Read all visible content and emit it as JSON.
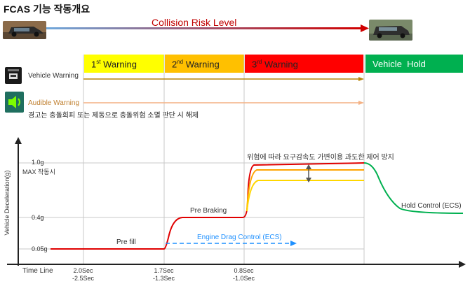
{
  "title": "FCAS 기능 작동개요",
  "risk_label": "Collision Risk Level",
  "phases": [
    {
      "label": "1st Warning",
      "sup": "st",
      "base": "1",
      "rest": " Warning",
      "color": "#ffff00"
    },
    {
      "label": "2nd Warning",
      "sup": "nd",
      "base": "2",
      "rest": " Warning",
      "color": "#ffc000"
    },
    {
      "label": "3rd Warning",
      "sup": "rd",
      "base": "3",
      "rest": " Warning",
      "color": "#ff0000"
    },
    {
      "label": "Vehicle  Hold",
      "color": "#00b050"
    }
  ],
  "vehicle_warning": "Vehicle Warning",
  "audible_warning": "Audible Warning",
  "release_note": "경고는 충돌회피 또는 제동으로 충돌위험 소멸 판단 시 해제",
  "variable_note": "위험에 따라 요구감속도 가변이용 과도한 제어 방지",
  "max_note": "MAX 작동시",
  "y_axis_label": "Vehicle Deceleration(g)",
  "y_ticks": [
    "1.0g",
    "0.4g",
    "0.05g"
  ],
  "x_axis_label": "Time Line",
  "time_marks": [
    {
      "line1": "2.0Sec",
      "line2": "-2.5Sec"
    },
    {
      "line1": "1.7Sec",
      "line2": "-1.3Sec"
    },
    {
      "line1": "0.8Sec",
      "line2": "-1.0Sec"
    }
  ],
  "stage_labels": {
    "pre_fill": "Pre fill",
    "pre_braking": "Pre Braking",
    "engine_drag": "Engine Drag Control (ECS)",
    "hold_control": "Hold Control (ECS)"
  },
  "colors": {
    "risk_text": "#c00000",
    "risk_bar_start": "#6fa8dc",
    "risk_bar_end": "#d00000",
    "vehicle_line": "#b8860b",
    "audible_line": "#f4b183",
    "decel_curve": "#e00000",
    "hold_curve": "#00b050",
    "engine_drag": "#1e90ff",
    "note_text": "#7f6000",
    "audible_icon_bg": "#1f6f5f",
    "audible_icon_fg": "#7CFC00"
  }
}
